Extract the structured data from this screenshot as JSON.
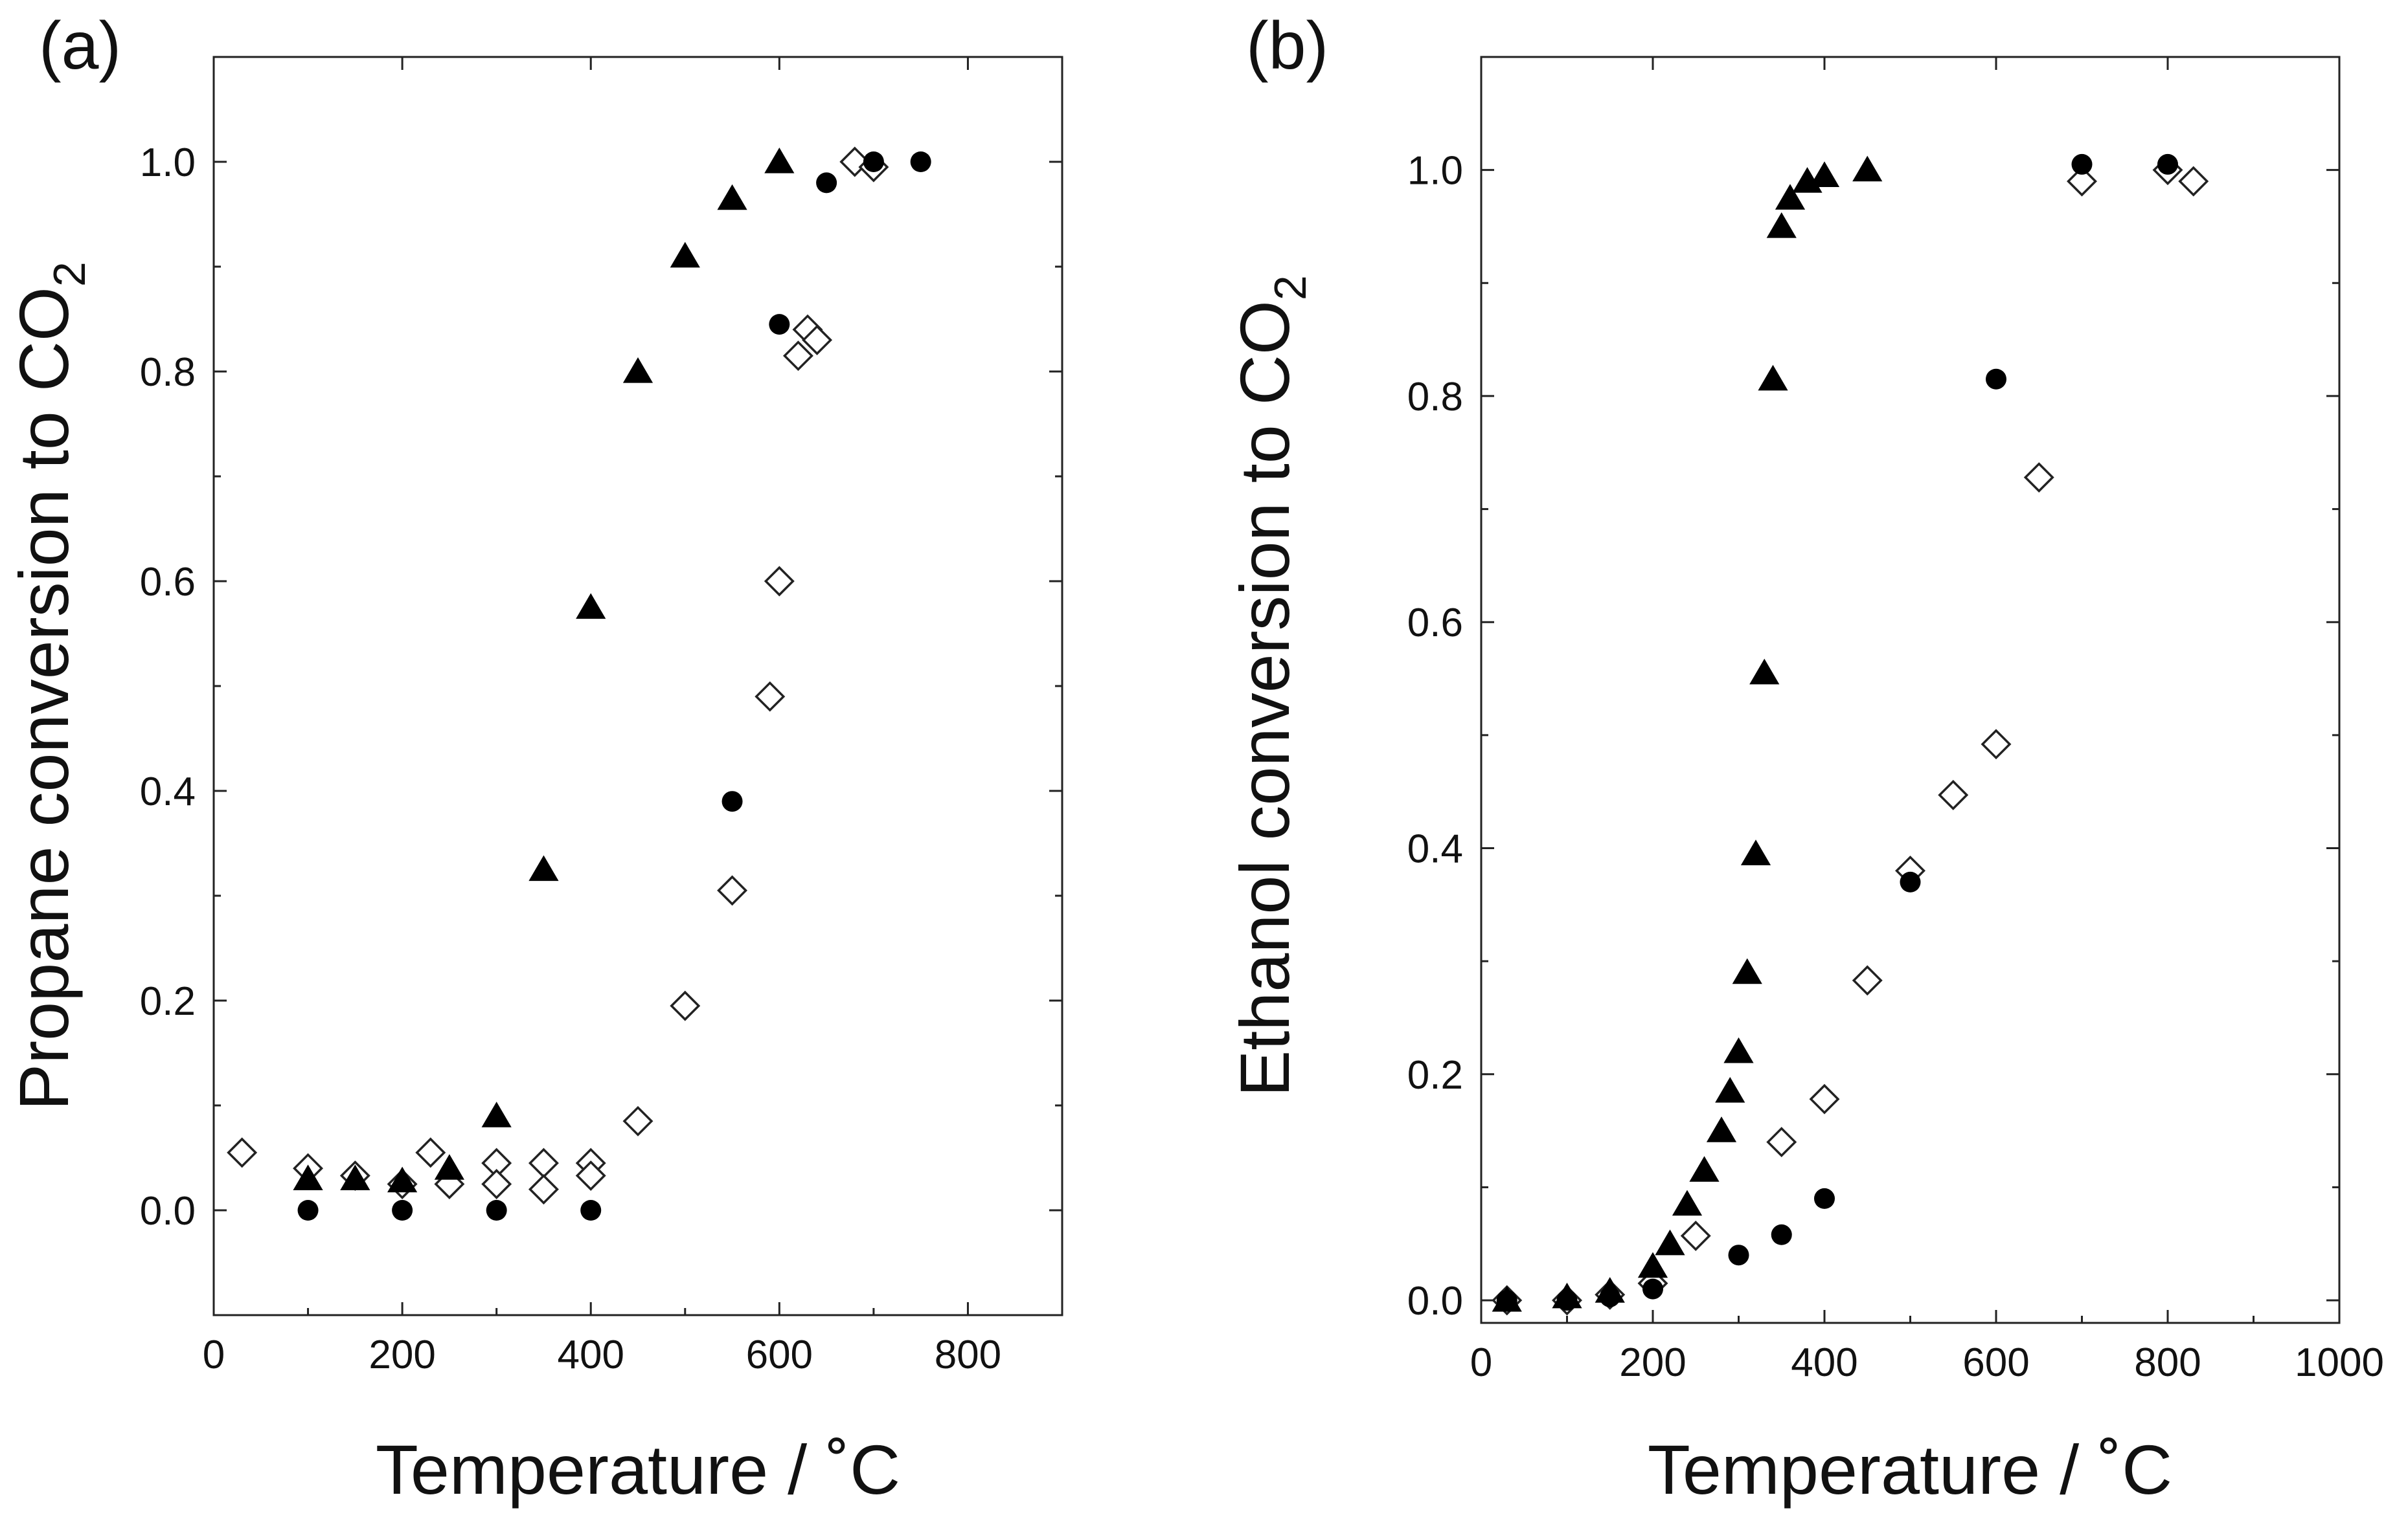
{
  "chart_data": [
    {
      "type": "scatter",
      "panel_label": "(a)",
      "xlabel": "Temperature / ˚C",
      "ylabel": "Propane conversion to CO",
      "ylabel_subscript": "2",
      "xlim": [
        0,
        900
      ],
      "ylim": [
        -0.1,
        1.1
      ],
      "x_ticks": [
        0,
        200,
        400,
        600,
        800
      ],
      "x_tick_labels": [
        "0",
        "200",
        "400",
        "600",
        "800"
      ],
      "y_ticks": [
        0.0,
        0.2,
        0.4,
        0.6,
        0.8,
        1.0
      ],
      "y_tick_labels": [
        "0.0",
        "0.2",
        "0.4",
        "0.6",
        "0.8",
        "1.0"
      ],
      "series": [
        {
          "name": "filled triangle",
          "marker": "triangle-filled",
          "points": [
            [
              100,
              0.03
            ],
            [
              150,
              0.03
            ],
            [
              200,
              0.028
            ],
            [
              250,
              0.04
            ],
            [
              300,
              0.09
            ],
            [
              350,
              0.325
            ],
            [
              400,
              0.575
            ],
            [
              450,
              0.8
            ],
            [
              500,
              0.91
            ],
            [
              550,
              0.965
            ],
            [
              600,
              1.0
            ]
          ]
        },
        {
          "name": "filled circle",
          "marker": "circle-filled",
          "points": [
            [
              100,
              0.0
            ],
            [
              200,
              0.0
            ],
            [
              300,
              0.0
            ],
            [
              400,
              0.0
            ],
            [
              550,
              0.39
            ],
            [
              600,
              0.845
            ],
            [
              650,
              0.98
            ],
            [
              700,
              1.0
            ],
            [
              750,
              1.0
            ]
          ]
        },
        {
          "name": "open diamond",
          "marker": "diamond-open",
          "points": [
            [
              30,
              0.055
            ],
            [
              100,
              0.04
            ],
            [
              150,
              0.033
            ],
            [
              200,
              0.025
            ],
            [
              230,
              0.055
            ],
            [
              250,
              0.025
            ],
            [
              300,
              0.045
            ],
            [
              300,
              0.025
            ],
            [
              350,
              0.045
            ],
            [
              350,
              0.02
            ],
            [
              400,
              0.045
            ],
            [
              400,
              0.033
            ],
            [
              450,
              0.085
            ],
            [
              500,
              0.195
            ],
            [
              550,
              0.305
            ],
            [
              590,
              0.49
            ],
            [
              600,
              0.6
            ],
            [
              620,
              0.815
            ],
            [
              630,
              0.84
            ],
            [
              640,
              0.83
            ],
            [
              680,
              1.0
            ],
            [
              700,
              0.995
            ]
          ]
        }
      ]
    },
    {
      "type": "scatter",
      "panel_label": "(b)",
      "xlabel": "Temperature / ˚C",
      "ylabel": "Ethanol conversion to CO",
      "ylabel_subscript": "2",
      "xlim": [
        0,
        1000
      ],
      "ylim": [
        -0.02,
        1.1
      ],
      "x_ticks": [
        0,
        200,
        400,
        600,
        800,
        1000
      ],
      "x_tick_labels": [
        "0",
        "200",
        "400",
        "600",
        "800",
        "1000"
      ],
      "y_ticks": [
        0.0,
        0.2,
        0.4,
        0.6,
        0.8,
        1.0
      ],
      "y_tick_labels": [
        "0.0",
        "0.2",
        "0.4",
        "0.6",
        "0.8",
        "1.0"
      ],
      "series": [
        {
          "name": "filled triangle",
          "marker": "triangle-filled",
          "points": [
            [
              30,
              0.0
            ],
            [
              100,
              0.003
            ],
            [
              150,
              0.008
            ],
            [
              200,
              0.03
            ],
            [
              220,
              0.05
            ],
            [
              240,
              0.085
            ],
            [
              260,
              0.115
            ],
            [
              280,
              0.15
            ],
            [
              290,
              0.185
            ],
            [
              300,
              0.22
            ],
            [
              310,
              0.29
            ],
            [
              320,
              0.395
            ],
            [
              330,
              0.555
            ],
            [
              340,
              0.815
            ],
            [
              350,
              0.95
            ],
            [
              360,
              0.975
            ],
            [
              380,
              0.99
            ],
            [
              400,
              0.995
            ],
            [
              450,
              1.0
            ]
          ]
        },
        {
          "name": "filled circle",
          "marker": "circle-filled",
          "points": [
            [
              30,
              0.0
            ],
            [
              100,
              0.0
            ],
            [
              150,
              0.003
            ],
            [
              200,
              0.01
            ],
            [
              300,
              0.04
            ],
            [
              350,
              0.058
            ],
            [
              400,
              0.09
            ],
            [
              500,
              0.37
            ],
            [
              600,
              0.815
            ],
            [
              700,
              1.005
            ],
            [
              800,
              1.005
            ]
          ]
        },
        {
          "name": "open diamond",
          "marker": "diamond-open",
          "points": [
            [
              30,
              0.0
            ],
            [
              100,
              0.0
            ],
            [
              150,
              0.005
            ],
            [
              200,
              0.015
            ],
            [
              250,
              0.057
            ],
            [
              350,
              0.14
            ],
            [
              400,
              0.178
            ],
            [
              450,
              0.283
            ],
            [
              500,
              0.38
            ],
            [
              550,
              0.447
            ],
            [
              600,
              0.492
            ],
            [
              650,
              0.728
            ],
            [
              700,
              0.99
            ],
            [
              800,
              1.0
            ],
            [
              830,
              0.99
            ]
          ]
        }
      ]
    }
  ]
}
